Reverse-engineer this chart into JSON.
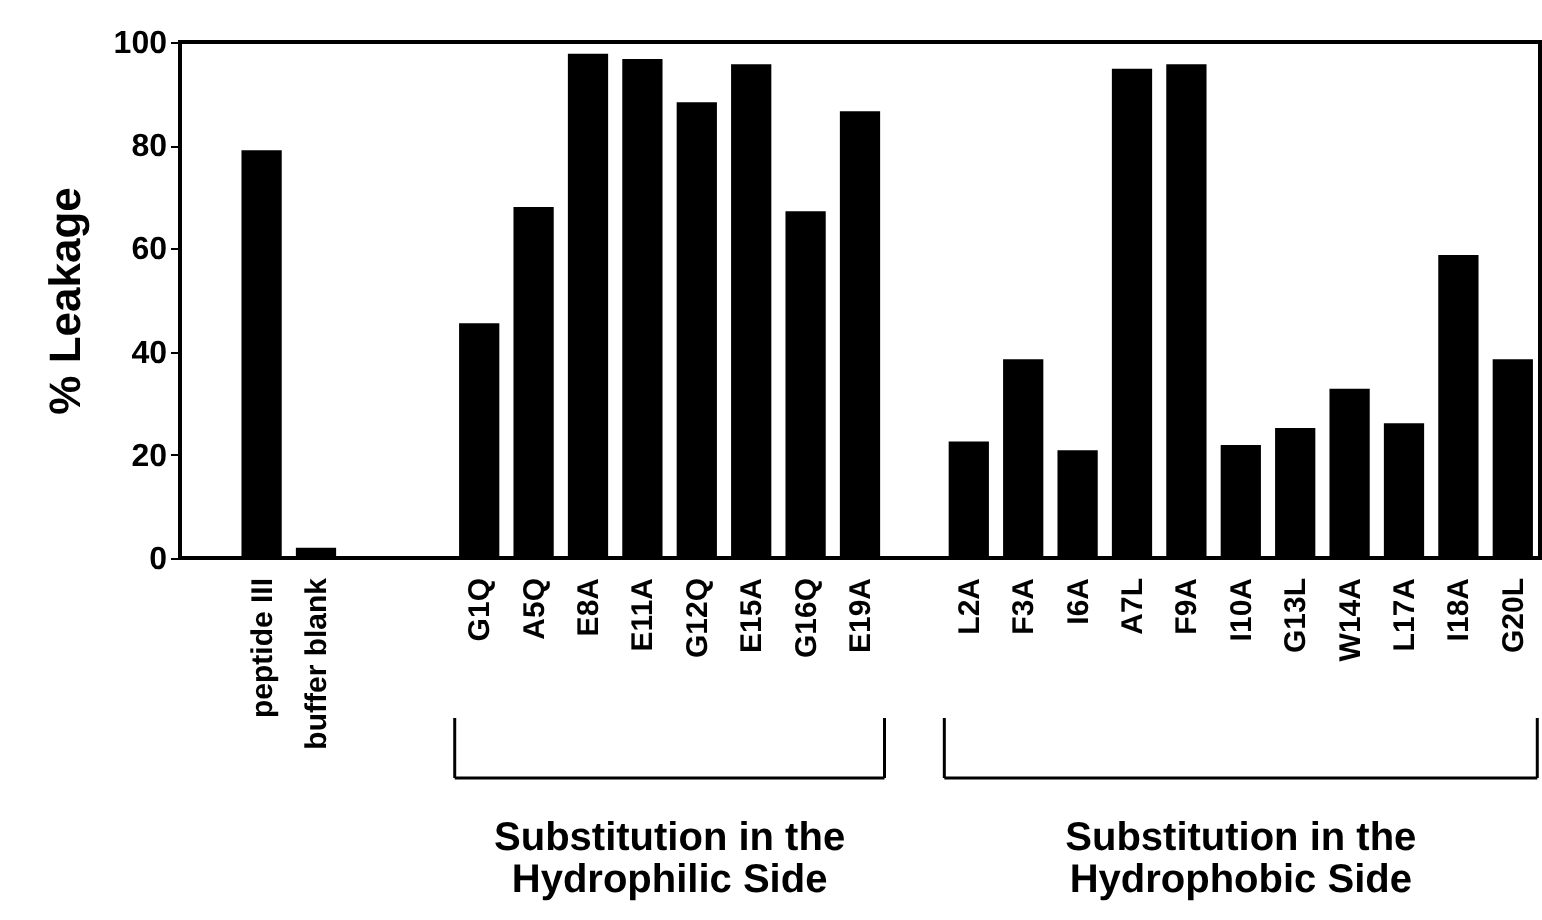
{
  "chart_data": {
    "type": "bar",
    "ylabel": "% Leakage",
    "categories": [
      null,
      "peptide III",
      "buffer blank",
      null,
      null,
      "G1Q",
      "A5Q",
      "E8A",
      "E11A",
      "G12Q",
      "E15A",
      "G16Q",
      "E19A",
      null,
      "L2A",
      "F3A",
      "I6A",
      "A7L",
      "F9A",
      "I10A",
      "G13L",
      "W14A",
      "L17A",
      "I18A",
      "G20L"
    ],
    "values": [
      null,
      79,
      2,
      null,
      null,
      45.5,
      68,
      97.7,
      96.7,
      88.3,
      95.7,
      67.2,
      86.6,
      null,
      22.6,
      38.5,
      20.9,
      94.8,
      95.7,
      21.9,
      25.2,
      32.8,
      26.1,
      58.7,
      38.5
    ],
    "color": "#000000",
    "ylim": [
      0,
      100
    ],
    "yticks": [
      0,
      20,
      40,
      60,
      80,
      100
    ],
    "annotations": [
      "Substitution in the Hydrophilic Side",
      "Substitution in the Hydrophobic Side"
    ],
    "grid": false
  }
}
